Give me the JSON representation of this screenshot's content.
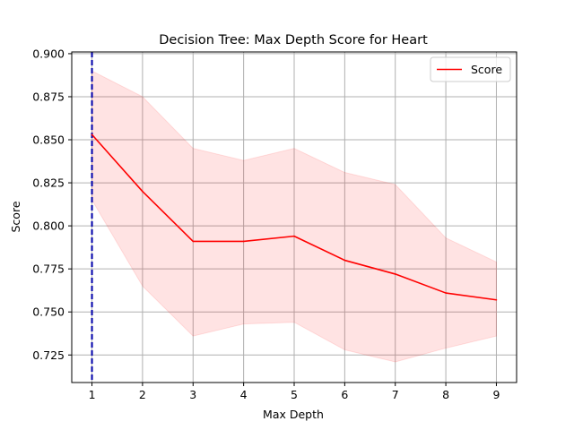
{
  "chart_data": {
    "type": "line",
    "title": "Decision Tree: Max Depth Score for Heart",
    "xlabel": "Max Depth",
    "ylabel": "Score",
    "x": [
      1,
      2,
      3,
      4,
      5,
      6,
      7,
      8,
      9
    ],
    "xlim": [
      0.6,
      9.4
    ],
    "ylim": [
      0.709,
      0.901
    ],
    "xticks": [
      1,
      2,
      3,
      4,
      5,
      6,
      7,
      8,
      9
    ],
    "yticks": [
      0.725,
      0.75,
      0.775,
      0.8,
      0.825,
      0.85,
      0.875,
      0.9
    ],
    "ytick_labels": [
      "0.725",
      "0.750",
      "0.775",
      "0.800",
      "0.825",
      "0.850",
      "0.875",
      "0.900"
    ],
    "grid": true,
    "legend_position": "top-right",
    "series": [
      {
        "name": "Score",
        "color": "#ff0000",
        "values": [
          0.853,
          0.82,
          0.791,
          0.791,
          0.794,
          0.78,
          0.772,
          0.761,
          0.757
        ],
        "band_upper": [
          0.89,
          0.875,
          0.845,
          0.838,
          0.845,
          0.831,
          0.824,
          0.793,
          0.779
        ],
        "band_lower": [
          0.815,
          0.765,
          0.736,
          0.743,
          0.744,
          0.728,
          0.721,
          0.729,
          0.736
        ],
        "band_color": "#ff0000"
      }
    ],
    "vline": {
      "x": 1,
      "color": "#0000aa",
      "style": "dashed"
    }
  }
}
